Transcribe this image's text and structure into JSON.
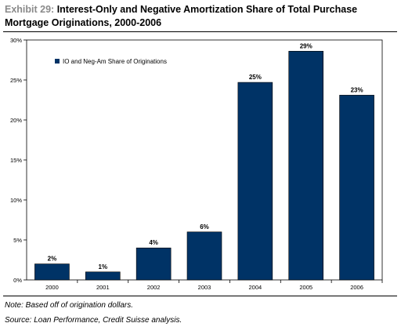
{
  "header": {
    "exhibit_label": "Exhibit 29:",
    "title": "Interest-Only and Negative Amortization Share of Total Purchase Mortgage Originations, 2000-2006"
  },
  "colors": {
    "bar": "#003366",
    "exhibit_label": "#8a8a8a"
  },
  "chart_data": {
    "type": "bar",
    "categories": [
      "2000",
      "2001",
      "2002",
      "2003",
      "2004",
      "2005",
      "2006"
    ],
    "series": [
      {
        "name": "IO and Neg-Am Share of Originations",
        "values": [
          2,
          1,
          4,
          6,
          24.7,
          28.6,
          23.1
        ],
        "labels": [
          "2%",
          "1%",
          "4%",
          "6%",
          "25%",
          "29%",
          "23%"
        ]
      }
    ],
    "ylim": [
      0,
      30
    ],
    "y_ticks": [
      0,
      5,
      10,
      15,
      20,
      25,
      30
    ],
    "y_tick_labels": [
      "0%",
      "5%",
      "10%",
      "15%",
      "20%",
      "25%",
      "30%"
    ],
    "grid": false,
    "legend_position": "top-left"
  },
  "footer": {
    "note": "Note: Based off of origination dollars.",
    "source": "Source: Loan Performance, Credit Suisse analysis."
  }
}
